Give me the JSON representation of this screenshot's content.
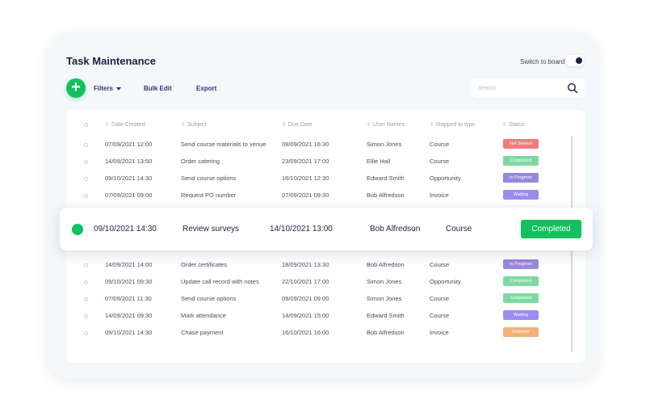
{
  "header": {
    "title": "Task Maintenance",
    "switch_label": "Switch to board"
  },
  "toolbar": {
    "add_icon": "+",
    "filters_label": "Filters",
    "bulk_edit_label": "Bulk Edit",
    "export_label": "Export"
  },
  "search": {
    "placeholder": "Search"
  },
  "table": {
    "columns": [
      "Date Created",
      "Subject",
      "Due Date",
      "User Names",
      "Mapped to type",
      "Status"
    ],
    "rows": [
      {
        "created": "07/09/2021   12:00",
        "subject": "Send course materials to venue",
        "due": "09/09/2021   16:30",
        "user": "Simon Jones",
        "type": "Course",
        "status": "Not Started",
        "status_color": "#f27b7b"
      },
      {
        "created": "14/09/2021   13:50",
        "subject": "Order catering",
        "due": "23/09/2021   17:00",
        "user": "Ellie Hall",
        "type": "Course",
        "status": "Completed",
        "status_color": "#7ed9a1"
      },
      {
        "created": "09/10/2021   14:30",
        "subject": "Send course options",
        "due": "16/10/2021   12:30",
        "user": "Edward Smith",
        "type": "Opportunity",
        "status": "In Progress",
        "status_color": "#9a86dc"
      },
      {
        "created": "07/09/2021   09:00",
        "subject": "Request PO number",
        "due": "07/09/2021   09:30",
        "user": "Bob Alfredson",
        "type": "Invoice",
        "status": "Waiting",
        "status_color": "#9b8cf2"
      },
      {
        "created": "14/09/2021   14:00",
        "subject": "Order certificates",
        "due": "18/09/2021   13:30",
        "user": "Bob Alfredson",
        "type": "Course",
        "status": "In Progress",
        "status_color": "#9a86dc"
      },
      {
        "created": "09/10/2021   09:30",
        "subject": "Update call record with notes",
        "due": "22/10/2021   17:00",
        "user": "Simon Jones",
        "type": "Opportunity",
        "status": "Completed",
        "status_color": "#7ed9a1"
      },
      {
        "created": "07/09/2021   11:30",
        "subject": "Send course options",
        "due": "09/09/2021   09:00",
        "user": "Simon Jones",
        "type": "Course",
        "status": "Completed",
        "status_color": "#7ed9a1"
      },
      {
        "created": "14/09/2021   09:30",
        "subject": "Mark attendance",
        "due": "14/09/2021   15:00",
        "user": "Edward Smith",
        "type": "Course",
        "status": "Waiting",
        "status_color": "#9b8cf2"
      },
      {
        "created": "09/10/2021   14:30",
        "subject": "Chase payment",
        "due": "16/10/2021   16:00",
        "user": "Bob Alfredson",
        "type": "Invoice",
        "status": "Deferred",
        "status_color": "#f3b07a"
      }
    ]
  },
  "highlight": {
    "created": "09/10/2021   14:30",
    "subject": "Review surveys",
    "due": "14/10/2021   13:00",
    "user": "Bob Alfredson",
    "type": "Course",
    "status": "Completed",
    "status_color": "#12c05e"
  }
}
